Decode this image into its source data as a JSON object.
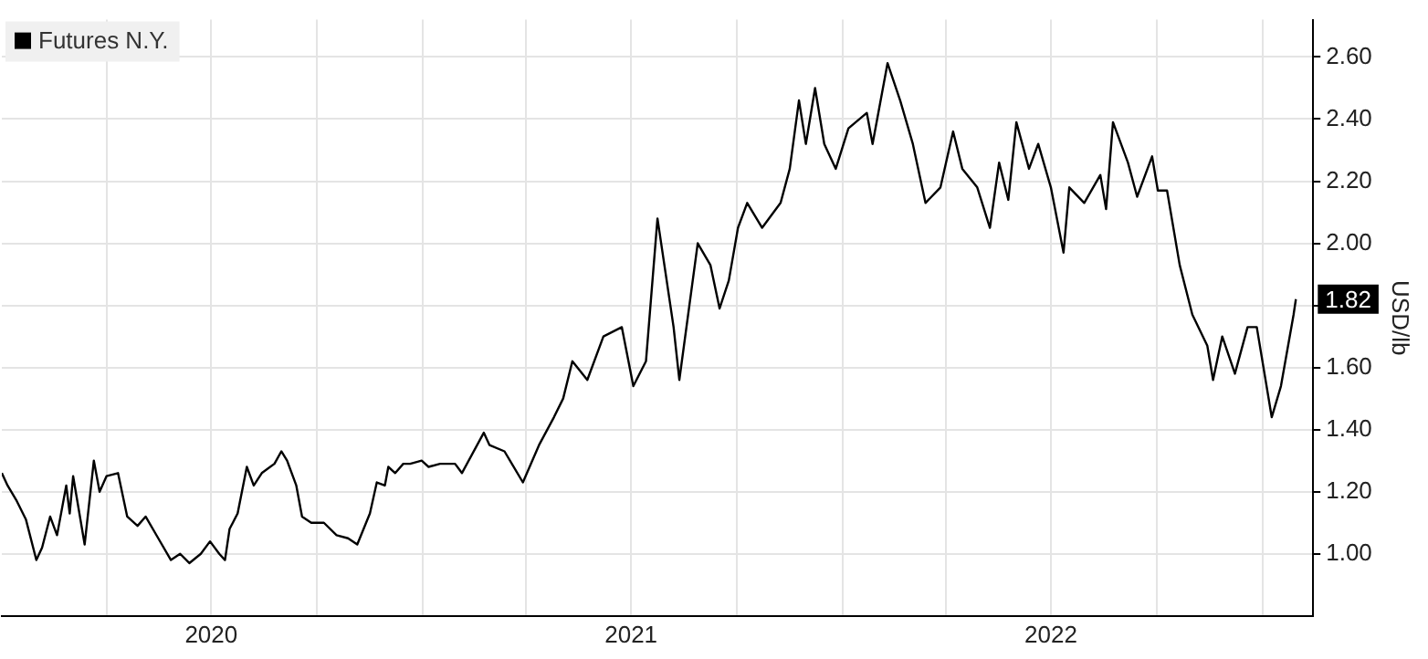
{
  "chart_data": {
    "type": "line",
    "ylabel": "USD/lb",
    "legend": "top left",
    "marker": "none",
    "grid": true,
    "xlim": [
      "2020-01-01",
      "2023-02-14"
    ],
    "ylim": [
      0.8,
      2.72
    ],
    "xticks": [
      {
        "value": "2020-04-01",
        "label": null
      },
      {
        "value": "2020-07-01",
        "label": "2020"
      },
      {
        "value": "2020-10-01",
        "label": null
      },
      {
        "value": "2021-01-01",
        "label": null
      },
      {
        "value": "2021-04-01",
        "label": null
      },
      {
        "value": "2021-07-01",
        "label": "2021"
      },
      {
        "value": "2021-10-01",
        "label": null
      },
      {
        "value": "2022-01-01",
        "label": null
      },
      {
        "value": "2022-04-01",
        "label": null
      },
      {
        "value": "2022-07-01",
        "label": "2022"
      },
      {
        "value": "2022-10-01",
        "label": null
      },
      {
        "value": "2023-01-01",
        "label": null
      }
    ],
    "yticks": [
      {
        "value": 1,
        "label": "1.00"
      },
      {
        "value": 1.2,
        "label": "1.20"
      },
      {
        "value": 1.4,
        "label": "1.40"
      },
      {
        "value": 1.6,
        "label": "1.60"
      },
      {
        "value": 1.8,
        "label": null
      },
      {
        "value": 2,
        "label": "2.00"
      },
      {
        "value": 2.2,
        "label": "2.20"
      },
      {
        "value": 2.4,
        "label": "2.40"
      },
      {
        "value": 2.6,
        "label": "2.60"
      }
    ],
    "annotations": [
      {
        "text": "1.82",
        "x": "2023-01-30",
        "y": 1.82
      }
    ],
    "x": [
      "2020-01-01",
      "2020-01-06",
      "2020-01-14",
      "2020-01-22",
      "2020-01-31",
      "2020-02-05",
      "2020-02-12",
      "2020-02-18",
      "2020-02-26",
      "2020-02-29",
      "2020-03-03",
      "2020-03-13",
      "2020-03-21",
      "2020-03-26",
      "2020-04-01",
      "2020-04-11",
      "2020-04-19",
      "2020-04-28",
      "2020-05-05",
      "2020-05-16",
      "2020-05-27",
      "2020-06-04",
      "2020-06-12",
      "2020-06-22",
      "2020-06-30",
      "2020-07-08",
      "2020-07-13",
      "2020-07-17",
      "2020-07-24",
      "2020-08-01",
      "2020-08-07",
      "2020-08-14",
      "2020-08-25",
      "2020-08-31",
      "2020-09-05",
      "2020-09-13",
      "2020-09-18",
      "2020-09-26",
      "2020-10-07",
      "2020-10-18",
      "2020-10-28",
      "2020-11-05",
      "2020-11-16",
      "2020-11-22",
      "2020-11-29",
      "2020-12-02",
      "2020-12-08",
      "2020-12-15",
      "2020-12-21",
      "2020-12-31",
      "2021-01-06",
      "2021-01-16",
      "2021-01-29",
      "2021-02-04",
      "2021-02-23",
      "2021-02-28",
      "2021-03-13",
      "2021-03-29",
      "2021-04-12",
      "2021-04-25",
      "2021-05-03",
      "2021-05-11",
      "2021-05-24",
      "2021-06-07",
      "2021-06-23",
      "2021-07-03",
      "2021-07-14",
      "2021-07-24",
      "2021-07-30",
      "2021-08-07",
      "2021-08-12",
      "2021-08-28",
      "2021-09-08",
      "2021-09-16",
      "2021-09-24",
      "2021-10-02",
      "2021-10-10",
      "2021-10-23",
      "2021-11-08",
      "2021-11-16",
      "2021-11-24",
      "2021-11-30",
      "2021-12-08",
      "2021-12-16",
      "2021-12-26",
      "2022-01-06",
      "2022-01-22",
      "2022-01-27",
      "2022-02-09",
      "2022-02-20",
      "2022-03-03",
      "2022-03-14",
      "2022-03-27",
      "2022-04-07",
      "2022-04-15",
      "2022-04-28",
      "2022-05-09",
      "2022-05-17",
      "2022-05-25",
      "2022-06-01",
      "2022-06-12",
      "2022-06-20",
      "2022-07-01",
      "2022-07-12",
      "2022-07-17",
      "2022-07-30",
      "2022-08-13",
      "2022-08-18",
      "2022-08-24",
      "2022-09-06",
      "2022-09-14",
      "2022-09-27",
      "2022-10-02",
      "2022-10-10",
      "2022-10-21",
      "2022-11-01",
      "2022-11-14",
      "2022-11-19",
      "2022-11-27",
      "2022-12-08",
      "2022-12-19",
      "2022-12-27",
      "2023-01-09",
      "2023-01-17",
      "2023-01-28",
      "2023-01-30"
    ],
    "series": [
      {
        "name": "Futures N.Y.",
        "color": "#000000",
        "values": [
          1.26,
          1.22,
          1.17,
          1.11,
          0.98,
          1.02,
          1.12,
          1.06,
          1.22,
          1.13,
          1.25,
          1.03,
          1.3,
          1.2,
          1.25,
          1.26,
          1.12,
          1.09,
          1.12,
          1.05,
          0.98,
          1.0,
          0.97,
          1.0,
          1.04,
          1.0,
          0.98,
          1.08,
          1.13,
          1.28,
          1.22,
          1.26,
          1.29,
          1.33,
          1.3,
          1.22,
          1.12,
          1.1,
          1.1,
          1.06,
          1.05,
          1.03,
          1.13,
          1.23,
          1.22,
          1.28,
          1.26,
          1.29,
          1.29,
          1.3,
          1.28,
          1.29,
          1.29,
          1.26,
          1.39,
          1.35,
          1.33,
          1.23,
          1.35,
          1.44,
          1.5,
          1.62,
          1.56,
          1.7,
          1.73,
          1.54,
          1.62,
          2.08,
          1.93,
          1.73,
          1.56,
          2.0,
          1.93,
          1.79,
          1.88,
          2.05,
          2.13,
          2.05,
          2.13,
          2.24,
          2.46,
          2.32,
          2.5,
          2.32,
          2.24,
          2.37,
          2.42,
          2.32,
          2.58,
          2.46,
          2.32,
          2.13,
          2.18,
          2.36,
          2.24,
          2.18,
          2.05,
          2.26,
          2.14,
          2.39,
          2.24,
          2.32,
          2.18,
          1.97,
          2.18,
          2.13,
          2.22,
          2.11,
          2.39,
          2.26,
          2.15,
          2.28,
          2.17,
          2.17,
          1.93,
          1.77,
          1.67,
          1.56,
          1.7,
          1.58,
          1.73,
          1.73,
          1.44,
          1.54,
          1.77,
          1.82
        ]
      }
    ]
  }
}
